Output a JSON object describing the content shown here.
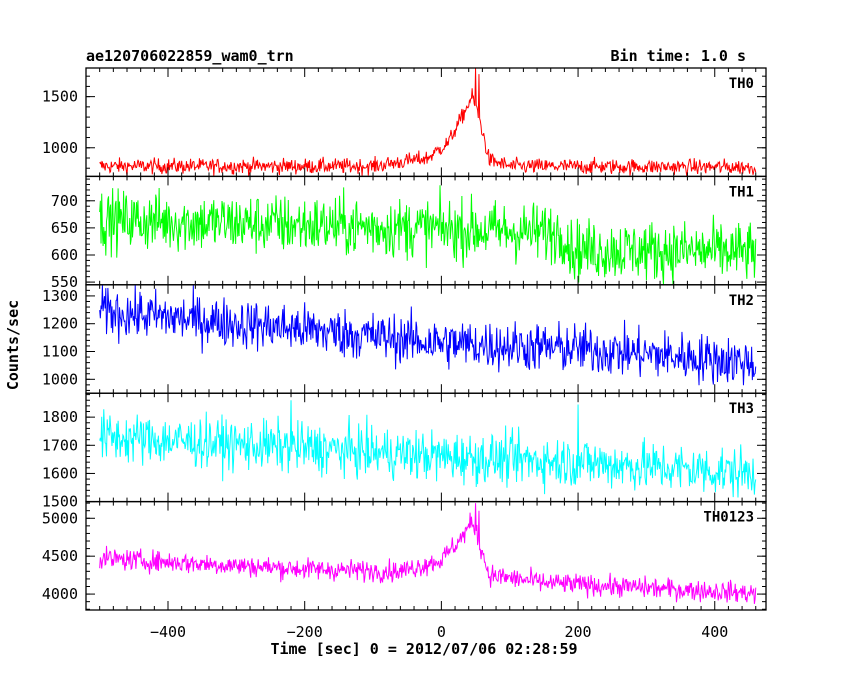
{
  "chart_data": {
    "type": "line",
    "title_left": "ae120706022859_wam0_trn",
    "title_right": "Bin time: 1.0 s",
    "xlabel": "Time [sec] 0 = 2012/07/06 02:28:59",
    "ylabel": "Counts/sec",
    "xlim": [
      -520,
      475
    ],
    "xticks": [
      -400,
      -200,
      0,
      200,
      400
    ],
    "x_range": [
      -500,
      460
    ],
    "panels": [
      {
        "name": "TH0",
        "color": "#ff0000",
        "ylim": [
          720,
          1780
        ],
        "yticks": [
          1000,
          1500
        ],
        "profile": [
          [
            -500,
            820
          ],
          [
            -100,
            820
          ],
          [
            -20,
            900
          ],
          [
            10,
            1050
          ],
          [
            30,
            1300
          ],
          [
            45,
            1500
          ],
          [
            55,
            1300
          ],
          [
            70,
            880
          ],
          [
            100,
            820
          ],
          [
            460,
            810
          ]
        ],
        "noise": 38,
        "spikes": [
          [
            50,
            1780
          ],
          [
            55,
            1720
          ]
        ]
      },
      {
        "name": "TH1",
        "color": "#00ff00",
        "ylim": [
          545,
          745
        ],
        "yticks": [
          550,
          600,
          650,
          700
        ],
        "profile": [
          [
            -500,
            665
          ],
          [
            -200,
            655
          ],
          [
            0,
            648
          ],
          [
            180,
            640
          ],
          [
            190,
            610
          ],
          [
            460,
            605
          ]
        ],
        "noise": 28,
        "spikes": []
      },
      {
        "name": "TH2",
        "color": "#0000ff",
        "ylim": [
          950,
          1340
        ],
        "yticks": [
          1000,
          1100,
          1200,
          1300
        ],
        "profile": [
          [
            -500,
            1245
          ],
          [
            -200,
            1180
          ],
          [
            0,
            1130
          ],
          [
            200,
            1110
          ],
          [
            460,
            1060
          ]
        ],
        "noise": 45,
        "spikes": []
      },
      {
        "name": "TH3",
        "color": "#00ffff",
        "ylim": [
          1500,
          1885
        ],
        "yticks": [
          1500,
          1600,
          1700,
          1800
        ],
        "profile": [
          [
            -500,
            1730
          ],
          [
            -200,
            1690
          ],
          [
            0,
            1660
          ],
          [
            200,
            1640
          ],
          [
            460,
            1600
          ]
        ],
        "noise": 45,
        "spikes": [
          [
            -220,
            1860
          ],
          [
            200,
            1845
          ]
        ]
      },
      {
        "name": "TH0123",
        "color": "#ff00ff",
        "ylim": [
          3790,
          5220
        ],
        "yticks": [
          4000,
          4500,
          5000
        ],
        "profile": [
          [
            -500,
            4470
          ],
          [
            -200,
            4330
          ],
          [
            -60,
            4300
          ],
          [
            0,
            4450
          ],
          [
            30,
            4750
          ],
          [
            45,
            4950
          ],
          [
            55,
            4700
          ],
          [
            70,
            4250
          ],
          [
            150,
            4150
          ],
          [
            460,
            4010
          ]
        ],
        "noise": 70,
        "spikes": [
          [
            50,
            5200
          ],
          [
            55,
            5100
          ]
        ]
      }
    ]
  }
}
